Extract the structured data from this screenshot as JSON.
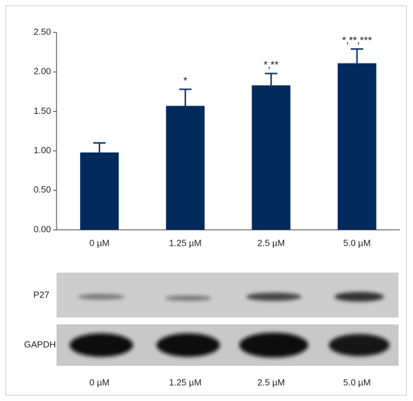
{
  "chart_data": {
    "type": "bar",
    "categories": [
      "0 µM",
      "1.25 µM",
      "2.5 µM",
      "5.0 µM"
    ],
    "values": [
      0.98,
      1.57,
      1.83,
      2.11
    ],
    "errors": [
      0.12,
      0.21,
      0.15,
      0.18
    ],
    "annotations": [
      null,
      "*",
      "*,**",
      "*,**,***"
    ],
    "color": "#032a5c",
    "ylim": [
      0,
      2.5
    ],
    "yticks": [
      {
        "value": 0,
        "label": "0.00"
      },
      {
        "value": 0.5,
        "label": "0.50"
      },
      {
        "value": 1,
        "label": "1.00"
      },
      {
        "value": 1.5,
        "label": "1.50"
      },
      {
        "value": 2,
        "label": "2.00"
      },
      {
        "value": 2.5,
        "label": "2.50"
      }
    ]
  },
  "blot": {
    "rows": [
      "P27",
      "GAPDH"
    ],
    "lanes": [
      "0 µM",
      "1.25 µM",
      "2.5 µM",
      "5.0 µM"
    ]
  }
}
